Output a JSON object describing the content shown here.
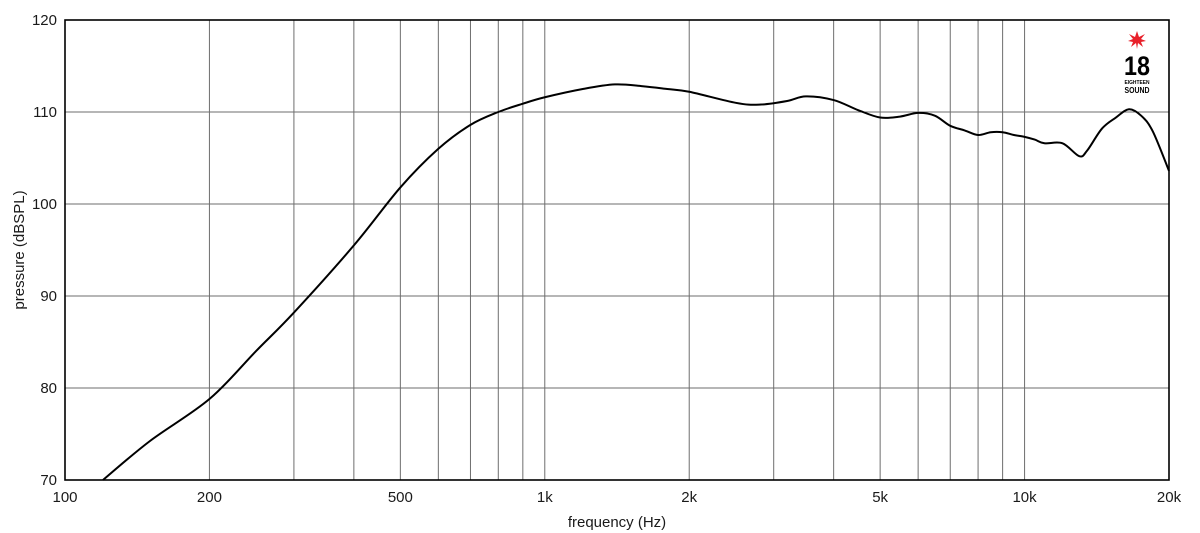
{
  "chart_data": {
    "type": "line",
    "xscale": "log",
    "xlabel": "frequency (Hz)",
    "ylabel": "pressure (dBSPL)",
    "xlim": [
      100,
      20000
    ],
    "ylim": [
      70,
      120
    ],
    "grid": true,
    "x_ticks": [
      {
        "value": 100,
        "label": "100"
      },
      {
        "value": 200,
        "label": "200"
      },
      {
        "value": 500,
        "label": "500"
      },
      {
        "value": 1000,
        "label": "1k"
      },
      {
        "value": 2000,
        "label": "2k"
      },
      {
        "value": 5000,
        "label": "5k"
      },
      {
        "value": 10000,
        "label": "10k"
      },
      {
        "value": 20000,
        "label": "20k"
      }
    ],
    "x_grid": [
      200,
      300,
      400,
      500,
      600,
      700,
      800,
      900,
      1000,
      2000,
      3000,
      4000,
      5000,
      6000,
      7000,
      8000,
      9000,
      10000
    ],
    "y_ticks": [
      {
        "value": 70,
        "label": "70"
      },
      {
        "value": 80,
        "label": "80"
      },
      {
        "value": 90,
        "label": "90"
      },
      {
        "value": 100,
        "label": "100"
      },
      {
        "value": 110,
        "label": "110"
      },
      {
        "value": 120,
        "label": "120"
      }
    ],
    "series": [
      {
        "color": "#000000",
        "points": [
          [
            120,
            70.0
          ],
          [
            150,
            74.2
          ],
          [
            200,
            78.8
          ],
          [
            250,
            84.0
          ],
          [
            300,
            88.2
          ],
          [
            400,
            95.5
          ],
          [
            500,
            101.8
          ],
          [
            600,
            106.0
          ],
          [
            700,
            108.6
          ],
          [
            800,
            110.0
          ],
          [
            900,
            110.9
          ],
          [
            1000,
            111.6
          ],
          [
            1200,
            112.5
          ],
          [
            1400,
            113.0
          ],
          [
            1600,
            112.8
          ],
          [
            1800,
            112.5
          ],
          [
            2000,
            112.2
          ],
          [
            2500,
            111.0
          ],
          [
            2800,
            110.8
          ],
          [
            3200,
            111.2
          ],
          [
            3500,
            111.7
          ],
          [
            4000,
            111.3
          ],
          [
            4500,
            110.2
          ],
          [
            5000,
            109.4
          ],
          [
            5500,
            109.5
          ],
          [
            6000,
            109.9
          ],
          [
            6500,
            109.6
          ],
          [
            7000,
            108.5
          ],
          [
            7500,
            108.0
          ],
          [
            8000,
            107.5
          ],
          [
            8500,
            107.8
          ],
          [
            9000,
            107.8
          ],
          [
            9500,
            107.5
          ],
          [
            10000,
            107.3
          ],
          [
            10500,
            107.0
          ],
          [
            11000,
            106.6
          ],
          [
            12000,
            106.6
          ],
          [
            13000,
            105.2
          ],
          [
            13500,
            105.8
          ],
          [
            14500,
            108.2
          ],
          [
            15500,
            109.4
          ],
          [
            16500,
            110.3
          ],
          [
            17500,
            109.6
          ],
          [
            18500,
            107.9
          ],
          [
            20000,
            103.6
          ]
        ]
      }
    ]
  },
  "logo": {
    "number": "18",
    "line1": "EIGHTEEN",
    "line2": "SOUND",
    "accent_color": "#e8202a"
  }
}
